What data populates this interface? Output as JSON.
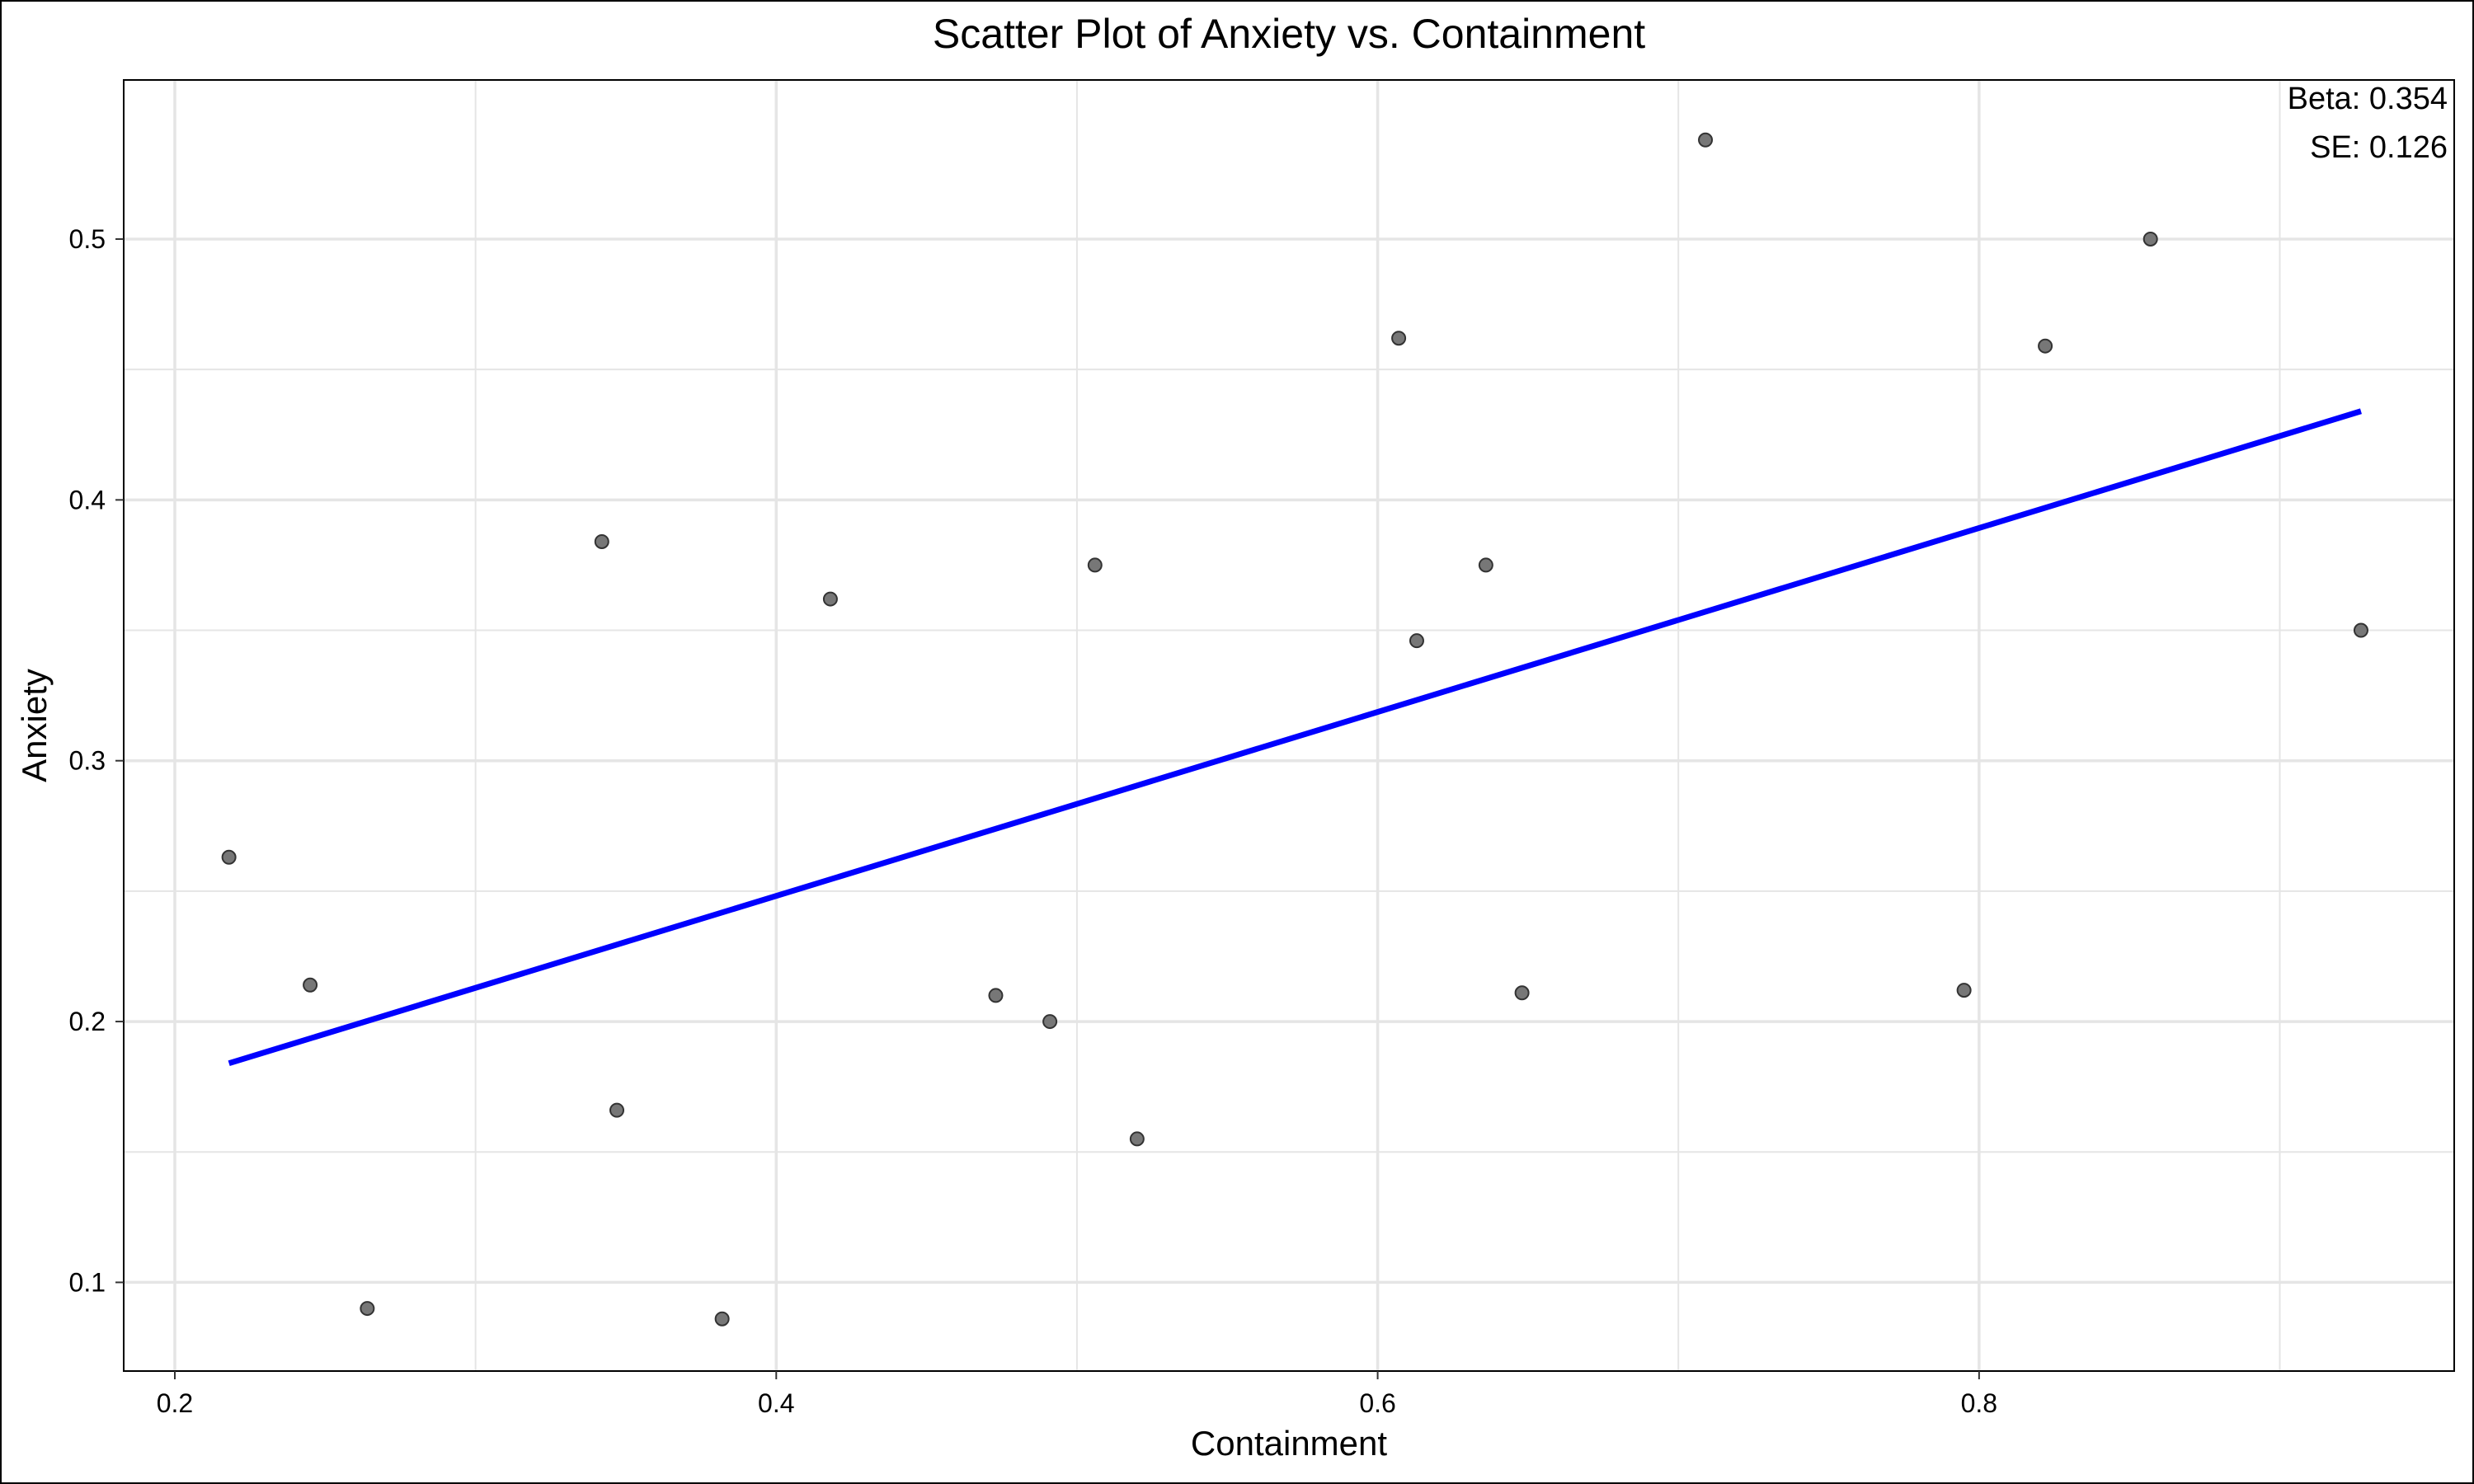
{
  "chart_data": {
    "type": "scatter",
    "title": "Scatter Plot of Anxiety vs. Containment",
    "xlabel": "Containment",
    "ylabel": "Anxiety",
    "xlim": [
      0.183,
      0.958
    ],
    "ylim": [
      0.066,
      0.561
    ],
    "x_ticks": [
      0.2,
      0.4,
      0.6,
      0.8
    ],
    "x_tick_labels": [
      "0.2",
      "0.4",
      "0.6",
      "0.8"
    ],
    "y_ticks": [
      0.1,
      0.2,
      0.3,
      0.4,
      0.5
    ],
    "y_tick_labels": [
      "0.1",
      "0.2",
      "0.3",
      "0.4",
      "0.5"
    ],
    "x_minor_ticks": [
      0.3,
      0.5,
      0.7,
      0.9
    ],
    "y_minor_ticks": [
      0.15,
      0.25,
      0.35,
      0.45
    ],
    "grid": true,
    "legend": "none",
    "points": [
      {
        "x": 0.218,
        "y": 0.263
      },
      {
        "x": 0.245,
        "y": 0.214
      },
      {
        "x": 0.264,
        "y": 0.09
      },
      {
        "x": 0.342,
        "y": 0.384
      },
      {
        "x": 0.347,
        "y": 0.166
      },
      {
        "x": 0.382,
        "y": 0.086
      },
      {
        "x": 0.418,
        "y": 0.362
      },
      {
        "x": 0.473,
        "y": 0.21
      },
      {
        "x": 0.491,
        "y": 0.2
      },
      {
        "x": 0.506,
        "y": 0.375
      },
      {
        "x": 0.52,
        "y": 0.155
      },
      {
        "x": 0.607,
        "y": 0.462
      },
      {
        "x": 0.613,
        "y": 0.346
      },
      {
        "x": 0.636,
        "y": 0.375
      },
      {
        "x": 0.648,
        "y": 0.211
      },
      {
        "x": 0.709,
        "y": 0.538
      },
      {
        "x": 0.795,
        "y": 0.212
      },
      {
        "x": 0.822,
        "y": 0.459
      },
      {
        "x": 0.857,
        "y": 0.5
      },
      {
        "x": 0.927,
        "y": 0.35
      }
    ],
    "fit_line": {
      "start": {
        "x": 0.218,
        "y": 0.184
      },
      "end": {
        "x": 0.927,
        "y": 0.434
      }
    },
    "annotations": [
      "Beta: 0.354",
      "SE: 0.126"
    ],
    "colors": {
      "point_fill": "#777777",
      "point_stroke": "#333333",
      "fit_line": "#0000ff",
      "grid": "#e5e5e5",
      "panel_border": "#000000"
    }
  }
}
